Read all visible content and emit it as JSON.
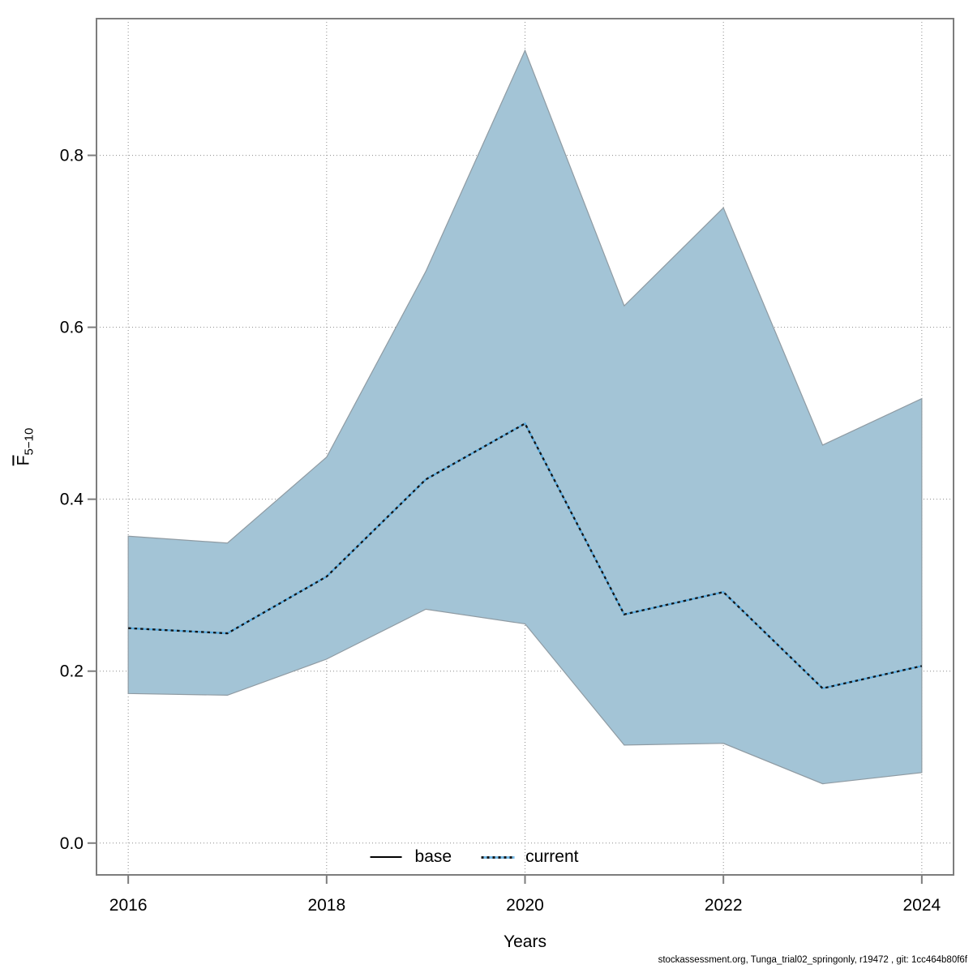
{
  "figure": {
    "xlabel": "Years",
    "ylabel_main": "F",
    "ylabel_sub": "5−10",
    "legend": {
      "base_label": "base",
      "current_label": "current"
    },
    "caption": "stockassessment.org, Tunga_trial02_springonly, r19472 , git: 1cc464b80f6f"
  },
  "chart_data": {
    "type": "area",
    "title": "",
    "xlabel": "Years",
    "ylabel": "F̄5−10",
    "x": [
      2016,
      2017,
      2018,
      2019,
      2020,
      2021,
      2022,
      2023,
      2024
    ],
    "series": [
      {
        "name": "current",
        "role": "center-line",
        "values": [
          0.25,
          0.244,
          0.31,
          0.423,
          0.488,
          0.266,
          0.292,
          0.18,
          0.206
        ]
      },
      {
        "name": "current-upper-ci",
        "role": "band-upper",
        "values": [
          0.357,
          0.349,
          0.449,
          0.665,
          0.922,
          0.625,
          0.739,
          0.463,
          0.517
        ]
      },
      {
        "name": "current-lower-ci",
        "role": "band-lower",
        "values": [
          0.174,
          0.172,
          0.214,
          0.272,
          0.255,
          0.114,
          0.116,
          0.069,
          0.082
        ]
      }
    ],
    "x_ticks": [
      2016,
      2018,
      2020,
      2022,
      2024
    ],
    "x_tick_labels": [
      "2016",
      "2018",
      "2020",
      "2022",
      "2024"
    ],
    "y_ticks": [
      0.0,
      0.2,
      0.4,
      0.6,
      0.8
    ],
    "y_tick_labels": [
      "0.0",
      "0.2",
      "0.4",
      "0.6",
      "0.8"
    ],
    "xlim": [
      2015.68,
      2024.32
    ],
    "ylim": [
      -0.037,
      0.959
    ],
    "grid": true,
    "legend_position": "bottom-center",
    "legend_entries": [
      "base",
      "current"
    ],
    "colors": {
      "band_fill": "#a3c4d6",
      "band_edge": "#8f9ba3",
      "line_blue": "#58abdf",
      "line_dash": "#141414",
      "grid": "#8c8c8c",
      "frame": "#7d7d7d",
      "text": "#000000"
    }
  }
}
